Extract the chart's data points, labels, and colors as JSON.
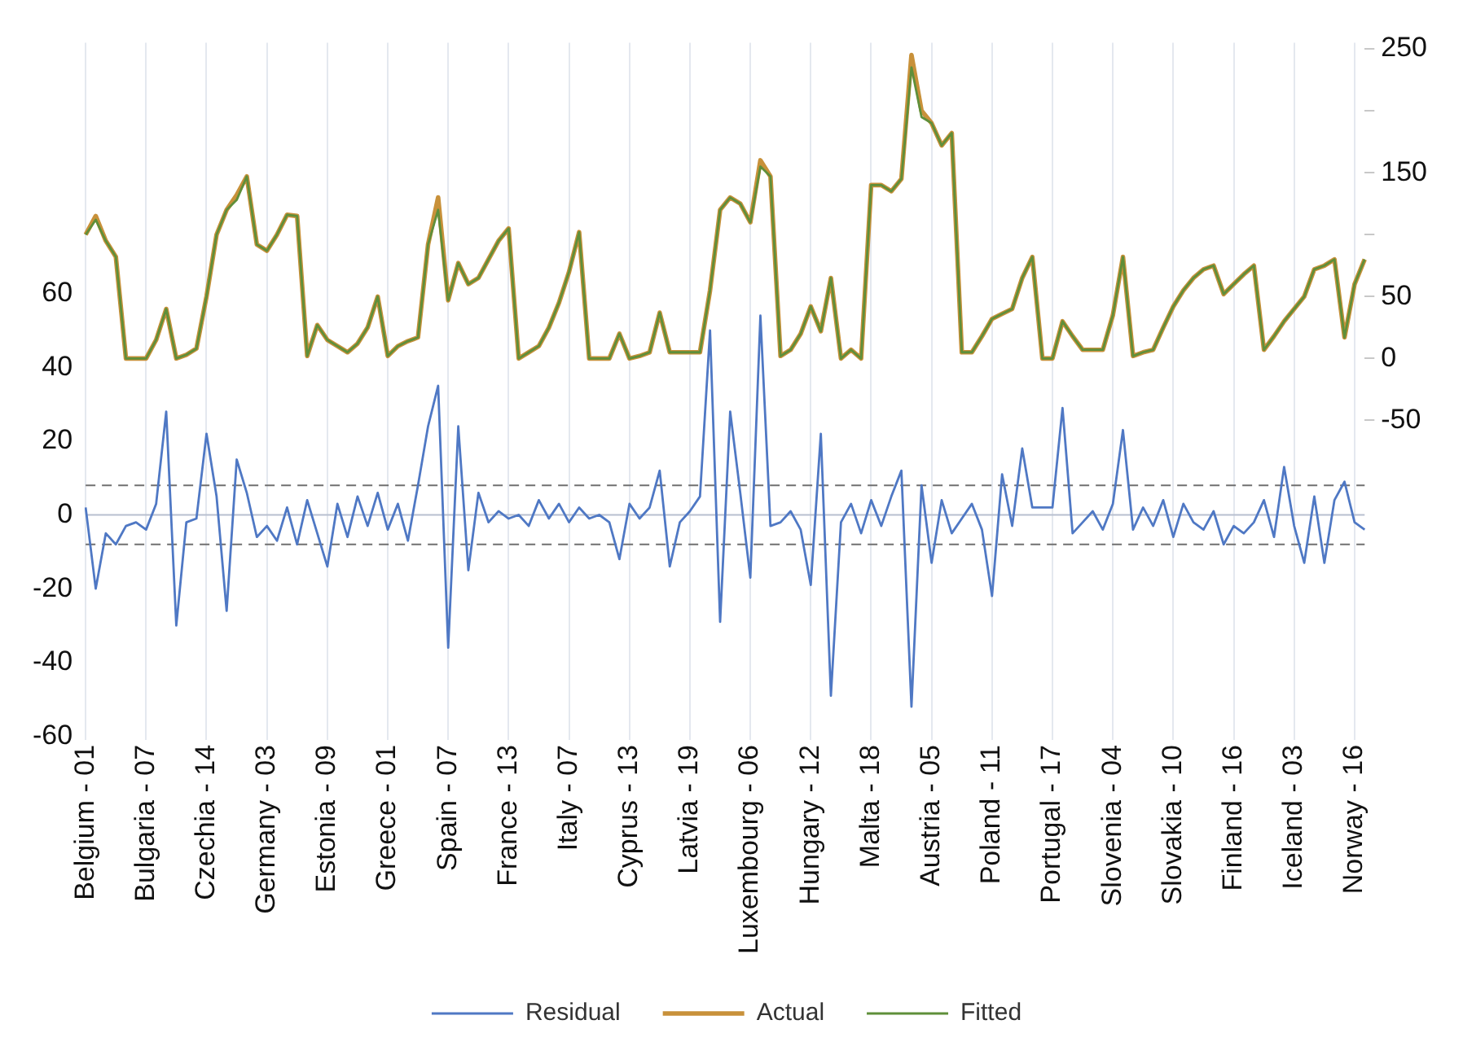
{
  "chart_data": {
    "type": "line",
    "categories": [
      "Belgium - 01",
      null,
      null,
      null,
      null,
      null,
      "Bulgaria - 07",
      null,
      null,
      null,
      null,
      null,
      "Czechia - 14",
      null,
      null,
      null,
      null,
      null,
      "Germany - 03",
      null,
      null,
      null,
      null,
      null,
      "Estonia - 09",
      null,
      null,
      null,
      null,
      null,
      "Greece - 01",
      null,
      null,
      null,
      null,
      null,
      "Spain - 07",
      null,
      null,
      null,
      null,
      null,
      "France - 13",
      null,
      null,
      null,
      null,
      null,
      "Italy - 07",
      null,
      null,
      null,
      null,
      null,
      "Cyprus - 13",
      null,
      null,
      null,
      null,
      null,
      "Latvia - 19",
      null,
      null,
      null,
      null,
      null,
      "Luxembourg - 06",
      null,
      null,
      null,
      null,
      null,
      "Hungary - 12",
      null,
      null,
      null,
      null,
      null,
      "Malta - 18",
      null,
      null,
      null,
      null,
      null,
      "Austria - 05",
      null,
      null,
      null,
      null,
      null,
      "Poland - 11",
      null,
      null,
      null,
      null,
      null,
      "Portugal - 17",
      null,
      null,
      null,
      null,
      null,
      "Slovenia - 04",
      null,
      null,
      null,
      null,
      null,
      "Slovakia - 10",
      null,
      null,
      null,
      null,
      null,
      "Finland - 16",
      null,
      null,
      null,
      null,
      null,
      "Iceland - 03",
      null,
      null,
      null,
      null,
      null,
      "Norway - 16",
      null
    ],
    "series": [
      {
        "name": "Residual",
        "color": "#4f78c4",
        "values": [
          2,
          -20,
          -5,
          -8,
          -3,
          -2,
          -4,
          3,
          28,
          -30,
          -2,
          -1,
          22,
          5,
          -26,
          15,
          6,
          -6,
          -3,
          -7,
          2,
          -8,
          4,
          -5,
          -14,
          3,
          -6,
          5,
          -3,
          6,
          -4,
          3,
          -7,
          8,
          24,
          35,
          -36,
          24,
          -15,
          6,
          -2,
          1,
          -1,
          0,
          -3,
          4,
          -1,
          3,
          -2,
          2,
          -1,
          0,
          -2,
          -12,
          3,
          -1,
          2,
          12,
          -14,
          -2,
          1,
          5,
          50,
          -29,
          28,
          6,
          -17,
          54,
          -3,
          -2,
          1,
          -4,
          -19,
          22,
          -49,
          -2,
          3,
          -5,
          4,
          -3,
          5,
          12,
          -52,
          8,
          -13,
          4,
          -5,
          -1,
          3,
          -4,
          -22,
          11,
          -3,
          18,
          2,
          2,
          2,
          29,
          -5,
          -2,
          1,
          -4,
          3,
          23,
          -4,
          2,
          -3,
          4,
          -6,
          3,
          -2,
          -4,
          1,
          -8,
          -3,
          -5,
          -2,
          4,
          -6,
          13,
          -3,
          -13,
          5,
          -13,
          4,
          9,
          -2,
          -4
        ]
      },
      {
        "name": "Actual",
        "color": "#c8913a",
        "axis": "y2",
        "values": [
          100,
          115,
          95,
          82,
          0,
          0,
          0,
          15,
          40,
          0,
          3,
          8,
          50,
          100,
          120,
          132,
          147,
          92,
          87,
          100,
          116,
          115,
          2,
          27,
          15,
          10,
          5,
          12,
          25,
          50,
          2,
          10,
          14,
          17,
          92,
          130,
          47,
          77,
          60,
          65,
          80,
          95,
          105,
          0,
          5,
          10,
          25,
          45,
          70,
          102,
          0,
          0,
          0,
          20,
          0,
          2,
          5,
          37,
          5,
          5,
          5,
          5,
          55,
          120,
          130,
          125,
          110,
          160,
          147,
          2,
          7,
          20,
          42,
          22,
          65,
          0,
          7,
          0,
          140,
          140,
          135,
          145,
          245,
          200,
          190,
          172,
          182,
          5,
          5,
          18,
          32,
          36,
          40,
          65,
          82,
          0,
          0,
          30,
          18,
          7,
          7,
          7,
          35,
          82,
          2,
          5,
          7,
          25,
          42,
          55,
          65,
          72,
          75,
          52,
          60,
          68,
          75,
          7,
          18,
          30,
          40,
          50,
          72,
          75,
          80,
          17,
          60,
          80
        ]
      },
      {
        "name": "Fitted",
        "color": "#5f8f3a",
        "axis": "y2",
        "values": [
          100,
          112,
          95,
          82,
          0,
          0,
          0,
          15,
          40,
          0,
          3,
          8,
          50,
          100,
          120,
          128,
          147,
          92,
          87,
          100,
          116,
          115,
          2,
          27,
          15,
          10,
          5,
          12,
          25,
          50,
          2,
          10,
          14,
          17,
          92,
          120,
          47,
          77,
          60,
          65,
          80,
          95,
          105,
          0,
          5,
          10,
          25,
          45,
          70,
          102,
          0,
          0,
          0,
          20,
          0,
          2,
          5,
          37,
          5,
          5,
          5,
          5,
          55,
          120,
          130,
          125,
          110,
          155,
          147,
          2,
          7,
          20,
          42,
          22,
          65,
          0,
          7,
          0,
          140,
          140,
          135,
          145,
          235,
          195,
          190,
          172,
          182,
          5,
          5,
          18,
          32,
          36,
          40,
          65,
          82,
          0,
          0,
          30,
          18,
          7,
          7,
          7,
          35,
          82,
          2,
          5,
          7,
          25,
          42,
          55,
          65,
          72,
          75,
          52,
          60,
          68,
          75,
          7,
          18,
          30,
          40,
          50,
          72,
          75,
          80,
          17,
          60,
          80
        ]
      }
    ],
    "ylim": [
      -61,
      128
    ],
    "yticks": [
      -60,
      -40,
      -20,
      0,
      20,
      40,
      60
    ],
    "y2lim": [
      -308,
      255
    ],
    "y2ticks": [
      -50,
      0,
      50,
      {
        "value": 100,
        "label": null
      },
      150,
      {
        "value": 200,
        "label": null
      },
      250
    ],
    "ref_lines": [
      {
        "axis": "y",
        "value": 0,
        "color": "#b8c0d0",
        "line_style": "solid"
      },
      {
        "axis": "y",
        "value": 8,
        "color": "#707070",
        "line_style": "dashed"
      },
      {
        "axis": "y",
        "value": -8,
        "color": "#707070",
        "line_style": "dashed"
      }
    ],
    "grid": "x",
    "legend": "bottom",
    "marker": "none",
    "line_style": "solid"
  }
}
